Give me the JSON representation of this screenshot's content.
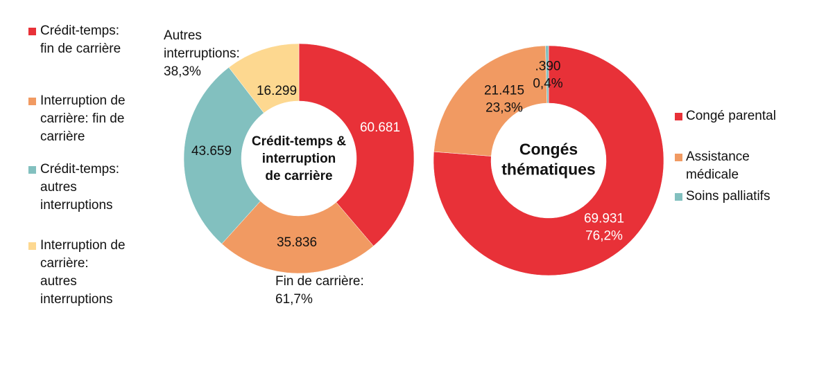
{
  "chart_data": [
    {
      "type": "donut",
      "center_label": [
        "Crédit-temps &",
        "interruption",
        "de carrière"
      ],
      "categories": [
        "Crédit-temps: fin de carrière",
        "Interruption de carrière: fin de carrière",
        "Crédit-temps: autres interruptions",
        "Interruption de carrière: autres interruptions"
      ],
      "values": [
        60681,
        35836,
        43659,
        16299
      ],
      "value_labels": [
        "60.681",
        "35.836",
        "43.659",
        "16.299"
      ],
      "colors": [
        "#E83138",
        "#F19A62",
        "#82C0BF",
        "#FDD890"
      ],
      "legend_lines": [
        [
          "Crédit-temps:",
          "fin de carrière"
        ],
        [
          "Interruption de",
          "carrière: fin de",
          "carrière"
        ],
        [
          "Crédit-temps:",
          "autres",
          "interruptions"
        ],
        [
          "Interruption de",
          "carrière:",
          "autres",
          "interruptions"
        ]
      ],
      "legend_placement": "left",
      "annotations": [
        [
          "Autres",
          "interruptions:",
          "38,3%"
        ],
        [
          "Fin de carrière:",
          "61,7%"
        ]
      ]
    },
    {
      "type": "donut",
      "center_label": [
        "Congés",
        "thématiques"
      ],
      "categories": [
        "Congé parental",
        "Assistance médicale",
        "Soins palliatifs"
      ],
      "values": [
        69931,
        21415,
        390
      ],
      "value_labels": [
        [
          "69.931",
          "76,2%"
        ],
        [
          "21.415",
          "23,3%"
        ],
        [
          ".390",
          "0,4%"
        ]
      ],
      "colors": [
        "#E83138",
        "#F19A62",
        "#82C0BF"
      ],
      "legend_lines": [
        [
          "Congé parental"
        ],
        [
          "Assistance",
          "médicale"
        ],
        [
          "Soins palliatifs"
        ]
      ],
      "legend_placement": "right"
    }
  ]
}
